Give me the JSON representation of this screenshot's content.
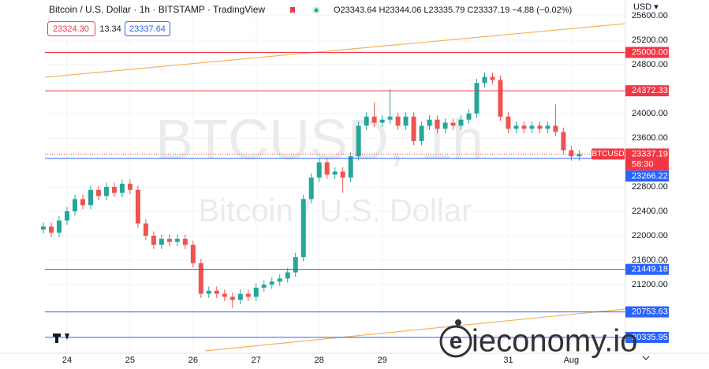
{
  "chart_data": {
    "type": "candlestick",
    "title": "Bitcoin / U.S. Dollar · 1h · BITSTAMP · TradingView",
    "ohlc_text": "O23343.64 H23344.06 L23335.79 C23337.19 −4.88 (−0.02%)",
    "sell": "23324.30",
    "spread": "13.34",
    "buy": "23337.64",
    "currency": "USD ▾",
    "watermark": "BTCUSD, 1h",
    "watermark_subtitle": "Bitcoin / U.S. Dollar",
    "logo": "ieconomy.io",
    "symbol_tag": "BTCUSD",
    "last_price": 23337.19,
    "countdown": "58:30",
    "up_color": "#26a69a",
    "down_color": "#ef5350",
    "grid": true,
    "xlim": [
      -8.4,
      212.6
    ],
    "ylim": [
      20077,
      25858
    ],
    "xticks": [
      {
        "value": 0,
        "label": "24"
      },
      {
        "value": 24,
        "label": "25"
      },
      {
        "value": 48,
        "label": "26"
      },
      {
        "value": 72,
        "label": "27"
      },
      {
        "value": 96,
        "label": "28"
      },
      {
        "value": 120,
        "label": "29"
      },
      {
        "value": 168,
        "label": "31"
      },
      {
        "value": 192,
        "label": "Aug"
      }
    ],
    "yticks": [
      {
        "value": 25600,
        "label": "25600.00"
      },
      {
        "value": 25200,
        "label": "25200.00"
      },
      {
        "value": 24800,
        "label": "24800.00"
      },
      {
        "value": 24000,
        "label": "24000.00"
      },
      {
        "value": 23600,
        "label": "23600.00"
      },
      {
        "value": 22800,
        "label": "22800.00"
      },
      {
        "value": 22400,
        "label": "22400.00"
      },
      {
        "value": 22000,
        "label": "22000.00"
      },
      {
        "value": 21600,
        "label": "21600.00"
      },
      {
        "value": 21200,
        "label": "21200.00"
      }
    ],
    "hlines": [
      {
        "value": 25000,
        "label": "25000.00",
        "color": "#f23645"
      },
      {
        "value": 24372.33,
        "label": "24372.33",
        "color": "#f23645"
      },
      {
        "value": 23266.22,
        "label": "23266.22",
        "color": "#2962ff"
      },
      {
        "value": 21449.18,
        "label": "21449.18",
        "color": "#2962ff"
      },
      {
        "value": 20753.63,
        "label": "20753.63",
        "color": "#2962ff"
      },
      {
        "value": 20335.95,
        "label": "20335.95",
        "color": "#2962ff"
      }
    ],
    "trendlines": [
      {
        "color": "#f5b25a",
        "x": [
          -8.4,
          212.6
        ],
        "y": [
          24594,
          25471
        ]
      },
      {
        "color": "#f5b25a",
        "x": [
          52.6,
          212.6
        ],
        "y": [
          20116,
          20800
        ]
      }
    ],
    "x": [
      -9,
      -6,
      -3,
      0,
      3,
      6,
      9,
      12,
      15,
      18,
      21,
      24,
      27,
      30,
      33,
      36,
      39,
      42,
      45,
      48,
      51,
      54,
      57,
      60,
      63,
      66,
      69,
      72,
      75,
      78,
      81,
      84,
      87,
      90,
      93,
      96,
      99,
      102,
      105,
      108,
      111,
      114,
      117,
      120,
      123,
      126,
      129,
      132,
      135,
      138,
      141,
      144,
      147,
      150,
      153,
      156,
      159,
      162,
      165,
      168,
      171,
      174,
      177,
      180,
      183,
      186,
      189,
      192,
      195
    ],
    "open": [
      22100,
      22150,
      22050,
      22250,
      22400,
      22600,
      22500,
      22750,
      22650,
      22800,
      22700,
      22850,
      22750,
      22200,
      22000,
      21850,
      21950,
      21900,
      21950,
      21850,
      21550,
      21050,
      21100,
      21050,
      21000,
      20950,
      21050,
      21000,
      21150,
      21200,
      21250,
      21300,
      21400,
      21650,
      22600,
      22950,
      23200,
      23000,
      23050,
      22950,
      23300,
      23800,
      23950,
      23850,
      23900,
      23950,
      23800,
      23950,
      23550,
      23800,
      23900,
      23750,
      23850,
      23800,
      23900,
      24000,
      24500,
      24600,
      24550,
      23950,
      23750,
      23800,
      23750,
      23800,
      23750,
      23800,
      23700,
      23400,
      23300
    ],
    "high": [
      22220,
      22220,
      22320,
      22470,
      22670,
      22670,
      22820,
      22820,
      22870,
      22870,
      22920,
      22920,
      22820,
      22270,
      22070,
      22020,
      22020,
      22020,
      22020,
      21920,
      21620,
      21170,
      21170,
      21120,
      21070,
      21120,
      21120,
      21220,
      21270,
      21320,
      21370,
      21470,
      21720,
      22670,
      23020,
      23270,
      23270,
      23120,
      23120,
      23370,
      23870,
      24020,
      24180,
      23970,
      24400,
      24020,
      24020,
      24020,
      23870,
      23970,
      23970,
      23920,
      23920,
      23970,
      24070,
      24570,
      24670,
      24670,
      24620,
      24020,
      23870,
      23870,
      23870,
      23870,
      23870,
      24150,
      23770,
      23470,
      23400
    ],
    "low": [
      22030,
      21980,
      21980,
      22180,
      22330,
      22430,
      22430,
      22580,
      22580,
      22630,
      22630,
      22680,
      22130,
      21930,
      21780,
      21780,
      21830,
      21830,
      21780,
      21480,
      20980,
      20980,
      20980,
      20930,
      20820,
      20880,
      20930,
      20930,
      21080,
      21130,
      21180,
      21230,
      21330,
      21580,
      22530,
      22880,
      22930,
      22930,
      22700,
      22880,
      23230,
      23730,
      23780,
      23780,
      23830,
      23730,
      23730,
      23480,
      23480,
      23730,
      23680,
      23680,
      23730,
      23730,
      23830,
      23930,
      24430,
      24480,
      23880,
      23680,
      23680,
      23680,
      23680,
      23680,
      23680,
      23630,
      23330,
      23230,
      23230
    ],
    "close": [
      22150,
      22050,
      22250,
      22400,
      22600,
      22500,
      22750,
      22650,
      22800,
      22700,
      22850,
      22750,
      22200,
      22000,
      21850,
      21950,
      21900,
      21950,
      21850,
      21550,
      21050,
      21100,
      21050,
      21000,
      20950,
      21050,
      21000,
      21150,
      21200,
      21250,
      21300,
      21400,
      21650,
      22600,
      22950,
      23200,
      23000,
      23050,
      22950,
      23300,
      23800,
      23950,
      23850,
      23900,
      23950,
      23800,
      23950,
      23550,
      23800,
      23900,
      23750,
      23850,
      23800,
      23900,
      24000,
      24500,
      24600,
      24550,
      23950,
      23750,
      23800,
      23750,
      23800,
      23750,
      23800,
      23700,
      23400,
      23300,
      23337.19
    ]
  }
}
